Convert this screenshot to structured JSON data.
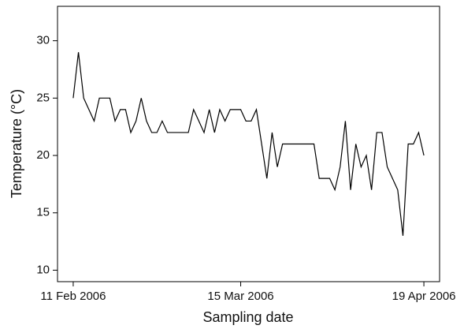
{
  "chart_data": {
    "type": "line",
    "x_label": "Sampling date",
    "y_label": "Temperature (°C)",
    "x": [
      "2006-02-11",
      "2006-02-12",
      "2006-02-13",
      "2006-02-14",
      "2006-02-15",
      "2006-02-16",
      "2006-02-17",
      "2006-02-18",
      "2006-02-19",
      "2006-02-20",
      "2006-02-21",
      "2006-02-22",
      "2006-02-23",
      "2006-02-24",
      "2006-02-25",
      "2006-02-26",
      "2006-02-27",
      "2006-02-28",
      "2006-03-01",
      "2006-03-02",
      "2006-03-03",
      "2006-03-04",
      "2006-03-05",
      "2006-03-06",
      "2006-03-07",
      "2006-03-08",
      "2006-03-09",
      "2006-03-10",
      "2006-03-11",
      "2006-03-12",
      "2006-03-13",
      "2006-03-14",
      "2006-03-15",
      "2006-03-16",
      "2006-03-17",
      "2006-03-18",
      "2006-03-19",
      "2006-03-20",
      "2006-03-21",
      "2006-03-22",
      "2006-03-23",
      "2006-03-24",
      "2006-03-25",
      "2006-03-26",
      "2006-03-27",
      "2006-03-28",
      "2006-03-29",
      "2006-03-30",
      "2006-03-31",
      "2006-04-01",
      "2006-04-02",
      "2006-04-03",
      "2006-04-04",
      "2006-04-05",
      "2006-04-06",
      "2006-04-07",
      "2006-04-08",
      "2006-04-09",
      "2006-04-10",
      "2006-04-11",
      "2006-04-12",
      "2006-04-13",
      "2006-04-14",
      "2006-04-15",
      "2006-04-16",
      "2006-04-17",
      "2006-04-18",
      "2006-04-19"
    ],
    "series": [
      {
        "name": "Temperature",
        "color": "#000000",
        "values": [
          25,
          29,
          25,
          24,
          23,
          25,
          25,
          25,
          23,
          24,
          24,
          22,
          23,
          25,
          23,
          22,
          22,
          23,
          22,
          22,
          22,
          22,
          22,
          24,
          23,
          22,
          24,
          22,
          24,
          23,
          24,
          24,
          24,
          23,
          23,
          24,
          21,
          18,
          22,
          19,
          21,
          21,
          21,
          21,
          21,
          21,
          21,
          18,
          18,
          18,
          17,
          19,
          23,
          17,
          21,
          19,
          20,
          17,
          22,
          22,
          19,
          18,
          17,
          13,
          21,
          21,
          22,
          20
        ]
      }
    ],
    "xlim": [
      "2006-02-08",
      "2006-04-22"
    ],
    "xticks": [
      {
        "value": "2006-02-11",
        "label": "11 Feb 2006"
      },
      {
        "value": "2006-03-15",
        "label": "15 Mar 2006"
      },
      {
        "value": "2006-04-19",
        "label": "19 Apr 2006"
      }
    ],
    "ylim": [
      9,
      33
    ],
    "yticks": [
      10,
      15,
      20,
      25,
      30
    ]
  }
}
